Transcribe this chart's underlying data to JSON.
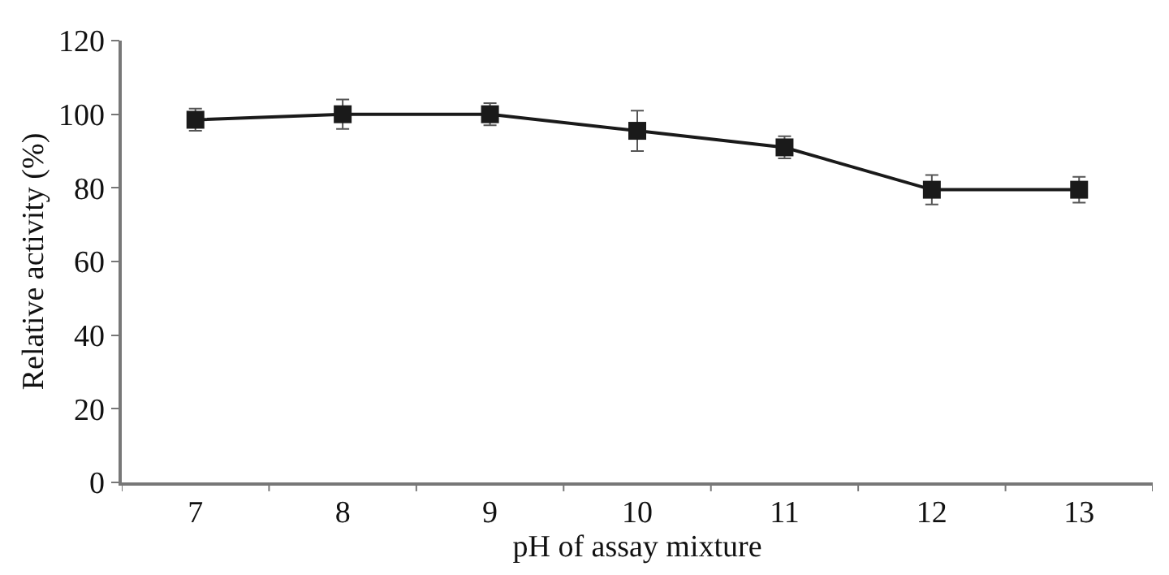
{
  "chart_data": {
    "type": "line",
    "xlabel": "pH of assay mixture",
    "ylabel": "Relative activity (%)",
    "categories": [
      "7",
      "8",
      "9",
      "10",
      "11",
      "12",
      "13"
    ],
    "series": [
      {
        "color": "#1a1a1a",
        "values": [
          98.5,
          100,
          100,
          95.5,
          91,
          79.5,
          79.5
        ],
        "errors": [
          3,
          4,
          3,
          5.5,
          3,
          4,
          3.5
        ]
      }
    ],
    "ylim": [
      0,
      120
    ],
    "yticks": [
      0,
      20,
      40,
      60,
      80,
      100,
      120
    ],
    "marker": "square",
    "line_style": "solid"
  }
}
